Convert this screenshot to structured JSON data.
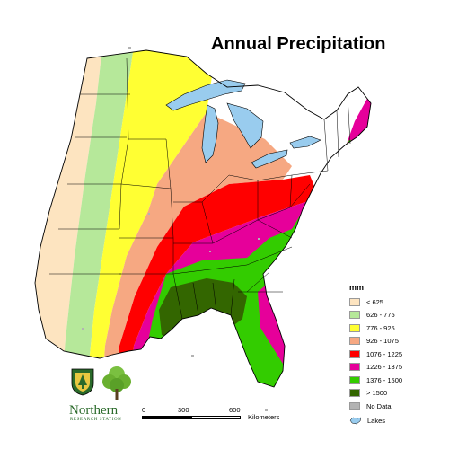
{
  "title": "Annual Precipitation",
  "legend": {
    "unit": "mm",
    "items": [
      {
        "label": "< 625",
        "color": "#fde4c0"
      },
      {
        "label": "626 - 775",
        "color": "#b6e89a"
      },
      {
        "label": "776 - 925",
        "color": "#ffff33"
      },
      {
        "label": "926 - 1075",
        "color": "#f6a882"
      },
      {
        "label": "1076 - 1225",
        "color": "#ff0000"
      },
      {
        "label": "1226 - 1375",
        "color": "#e6009a"
      },
      {
        "label": "1376 - 1500",
        "color": "#33cc00"
      },
      {
        "label": "> 1500",
        "color": "#336600"
      },
      {
        "label": "No Data",
        "color": "#b3b3b3"
      }
    ],
    "lakes": {
      "label": "Lakes",
      "color": "#99ccee"
    }
  },
  "logo": {
    "name": "Northern",
    "subtitle": "RESEARCH STATION"
  },
  "scale_bar": {
    "ticks": [
      "0",
      "300",
      "600"
    ],
    "unit": "Kilometers"
  }
}
